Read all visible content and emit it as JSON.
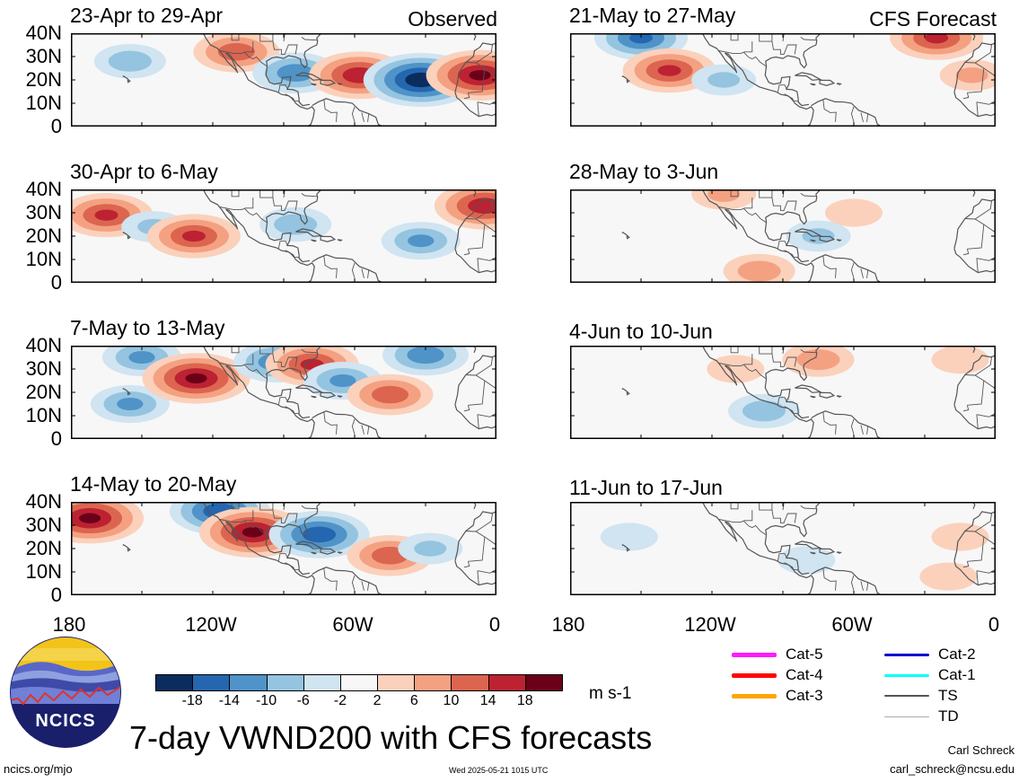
{
  "panels": {
    "observed": [
      {
        "title": "23-Apr to 29-Apr",
        "label": "Observed"
      },
      {
        "title": "30-Apr to 6-May"
      },
      {
        "title": "7-May to 13-May"
      },
      {
        "title": "14-May to 20-May"
      }
    ],
    "forecast": [
      {
        "title": "21-May to 27-May",
        "label": "CFS Forecast"
      },
      {
        "title": "28-May to 3-Jun"
      },
      {
        "title": "4-Jun to 10-Jun"
      },
      {
        "title": "11-Jun to 17-Jun"
      }
    ]
  },
  "axes": {
    "lat_ticks": [
      "40N",
      "30N",
      "20N",
      "10N",
      "0"
    ],
    "lon_ticks": [
      "180",
      "120W",
      "60W",
      "0"
    ]
  },
  "colorbar": {
    "colors": [
      "#0b2c5e",
      "#2467b0",
      "#4f93c8",
      "#94c4e0",
      "#d0e4f1",
      "#f7f7f7",
      "#fbd1bc",
      "#f4a182",
      "#dc6550",
      "#bc2231",
      "#6b0019"
    ],
    "labels": [
      "-18",
      "-14",
      "-10",
      "-6",
      "-2",
      "2",
      "6",
      "10",
      "14",
      "18"
    ],
    "units": "m s-1"
  },
  "storm_legend": [
    {
      "label": "Cat-5",
      "color": "#ff1aff"
    },
    {
      "label": "Cat-4",
      "color": "#ff0000"
    },
    {
      "label": "Cat-3",
      "color": "#ffa500"
    },
    {
      "label": "Cat-2",
      "color": "#0000cc"
    },
    {
      "label": "Cat-1",
      "color": "#00ffff"
    },
    {
      "label": "TS",
      "color": "#555555"
    },
    {
      "label": "TD",
      "color": "#aaaaaa"
    }
  ],
  "logo_text": "NCICS",
  "main_title": "7-day VWND200 with CFS forecasts",
  "footer": {
    "site": "ncics.org/mjo",
    "timestamp": "Wed 2025-05-21 1015 UTC",
    "author": "Carl Schreck",
    "email": "carl_schreck@ncsu.edu"
  },
  "chart_data": {
    "type": "heatmap",
    "variable": "VWND200",
    "lon_range": [
      -180,
      0
    ],
    "lat_range": [
      0,
      40
    ],
    "panels": [
      {
        "period": "23-Apr to 29-Apr",
        "kind": "Observed",
        "features": [
          {
            "lon": -155,
            "lat": 28,
            "value": -8
          },
          {
            "lon": -110,
            "lat": 32,
            "value": 12
          },
          {
            "lon": -85,
            "lat": 23,
            "value": -12
          },
          {
            "lon": -58,
            "lat": 22,
            "value": 16
          },
          {
            "lon": -32,
            "lat": 20,
            "value": -20
          },
          {
            "lon": -7,
            "lat": 22,
            "value": 18
          }
        ]
      },
      {
        "period": "30-Apr to 6-May",
        "kind": "Observed",
        "features": [
          {
            "lon": -165,
            "lat": 29,
            "value": 14
          },
          {
            "lon": -145,
            "lat": 24,
            "value": -6
          },
          {
            "lon": -128,
            "lat": 20,
            "value": 14
          },
          {
            "lon": -85,
            "lat": 25,
            "value": -8
          },
          {
            "lon": -32,
            "lat": 18,
            "value": -10
          },
          {
            "lon": -5,
            "lat": 33,
            "value": 16
          }
        ]
      },
      {
        "period": "7-May to 13-May",
        "kind": "Observed",
        "features": [
          {
            "lon": -150,
            "lat": 35,
            "value": -10
          },
          {
            "lon": -155,
            "lat": 15,
            "value": -10
          },
          {
            "lon": -127,
            "lat": 26,
            "value": 18
          },
          {
            "lon": -93,
            "lat": 33,
            "value": -12
          },
          {
            "lon": -78,
            "lat": 32,
            "value": 14
          },
          {
            "lon": -65,
            "lat": 25,
            "value": -10
          },
          {
            "lon": -45,
            "lat": 19,
            "value": 12
          },
          {
            "lon": -30,
            "lat": 36,
            "value": -12
          }
        ]
      },
      {
        "period": "14-May to 20-May",
        "kind": "Observed",
        "features": [
          {
            "lon": -172,
            "lat": 33,
            "value": 18
          },
          {
            "lon": -117,
            "lat": 36,
            "value": -16
          },
          {
            "lon": -103,
            "lat": 27,
            "value": 18
          },
          {
            "lon": -75,
            "lat": 26,
            "value": -16
          },
          {
            "lon": -45,
            "lat": 17,
            "value": 12
          },
          {
            "lon": -28,
            "lat": 20,
            "value": -6
          }
        ]
      },
      {
        "period": "21-May to 27-May",
        "kind": "CFS Forecast",
        "features": [
          {
            "lon": -150,
            "lat": 38,
            "value": -14
          },
          {
            "lon": -138,
            "lat": 24,
            "value": 14
          },
          {
            "lon": -115,
            "lat": 20,
            "value": -6
          },
          {
            "lon": -25,
            "lat": 38,
            "value": 14
          },
          {
            "lon": -10,
            "lat": 22,
            "value": 6
          }
        ]
      },
      {
        "period": "28-May to 3-Jun",
        "kind": "CFS Forecast",
        "features": [
          {
            "lon": -115,
            "lat": 38,
            "value": 6
          },
          {
            "lon": -100,
            "lat": 5,
            "value": 8
          },
          {
            "lon": -75,
            "lat": 20,
            "value": -6
          },
          {
            "lon": -60,
            "lat": 30,
            "value": 4
          }
        ]
      },
      {
        "period": "4-Jun to 10-Jun",
        "kind": "CFS Forecast",
        "features": [
          {
            "lon": -110,
            "lat": 30,
            "value": 4
          },
          {
            "lon": -98,
            "lat": 12,
            "value": -8
          },
          {
            "lon": -75,
            "lat": 34,
            "value": 8
          },
          {
            "lon": -15,
            "lat": 34,
            "value": 4
          }
        ]
      },
      {
        "period": "11-Jun to 17-Jun",
        "kind": "CFS Forecast",
        "features": [
          {
            "lon": -155,
            "lat": 25,
            "value": -4
          },
          {
            "lon": -80,
            "lat": 15,
            "value": -4
          },
          {
            "lon": -15,
            "lat": 25,
            "value": 4
          },
          {
            "lon": -20,
            "lat": 8,
            "value": 4
          }
        ]
      }
    ]
  }
}
